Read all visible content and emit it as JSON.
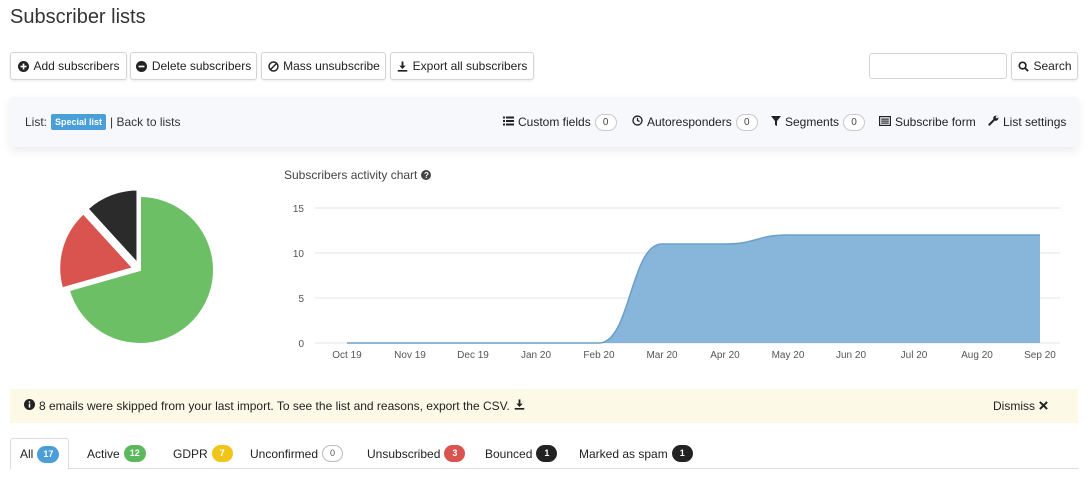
{
  "page": {
    "title": "Subscriber lists"
  },
  "toolbar": {
    "add_label": "Add subscribers",
    "delete_label": "Delete subscribers",
    "mass_unsub_label": "Mass unsubscribe",
    "export_label": "Export all subscribers",
    "search_value": "",
    "search_label": "Search"
  },
  "listbar": {
    "list_label": "List:",
    "list_name": "Special list",
    "back_label": "| Back to lists",
    "custom_fields": {
      "label": "Custom fields",
      "count": "0"
    },
    "autoresponders": {
      "label": "Autoresponders",
      "count": "0"
    },
    "segments": {
      "label": "Segments",
      "count": "0"
    },
    "subscribe_form": "Subscribe form",
    "list_settings": "List settings"
  },
  "pie": {
    "slices": [
      {
        "name": "active",
        "value": 12,
        "color": "#6cbf65"
      },
      {
        "name": "unsubscribed",
        "value": 3,
        "color": "#d9534f"
      },
      {
        "name": "bounced",
        "value": 2,
        "color": "#2b2b2b"
      }
    ]
  },
  "chart_data": {
    "type": "area",
    "title": "Subscribers activity chart",
    "categories": [
      "Oct 19",
      "Nov 19",
      "Dec 19",
      "Jan 20",
      "Feb 20",
      "Mar 20",
      "Apr 20",
      "May 20",
      "Jun 20",
      "Jul 20",
      "Aug 20",
      "Sep 20"
    ],
    "series": [
      {
        "values": [
          0,
          0,
          0,
          0,
          0,
          11,
          11,
          12,
          12,
          12,
          12,
          12
        ]
      }
    ],
    "yticks": [
      "0",
      "5",
      "10",
      "15"
    ],
    "ylim": [
      0,
      15
    ],
    "grid": true,
    "color": "#7aaed6"
  },
  "alert": {
    "message": "8 emails were skipped from your last import. To see the list and reasons, export the CSV.",
    "dismiss_label": "Dismiss"
  },
  "tabs": [
    {
      "label": "All",
      "count": "17",
      "color": "#4a9fd8"
    },
    {
      "label": "Active",
      "count": "12",
      "color": "#5cb85c"
    },
    {
      "label": "GDPR",
      "count": "7",
      "color": "#f0c419"
    },
    {
      "label": "Unconfirmed",
      "count": "0",
      "color": "outline"
    },
    {
      "label": "Unsubscribed",
      "count": "3",
      "color": "#d9534f"
    },
    {
      "label": "Bounced",
      "count": "1",
      "color": "#222222"
    },
    {
      "label": "Marked as spam",
      "count": "1",
      "color": "#222222"
    }
  ]
}
